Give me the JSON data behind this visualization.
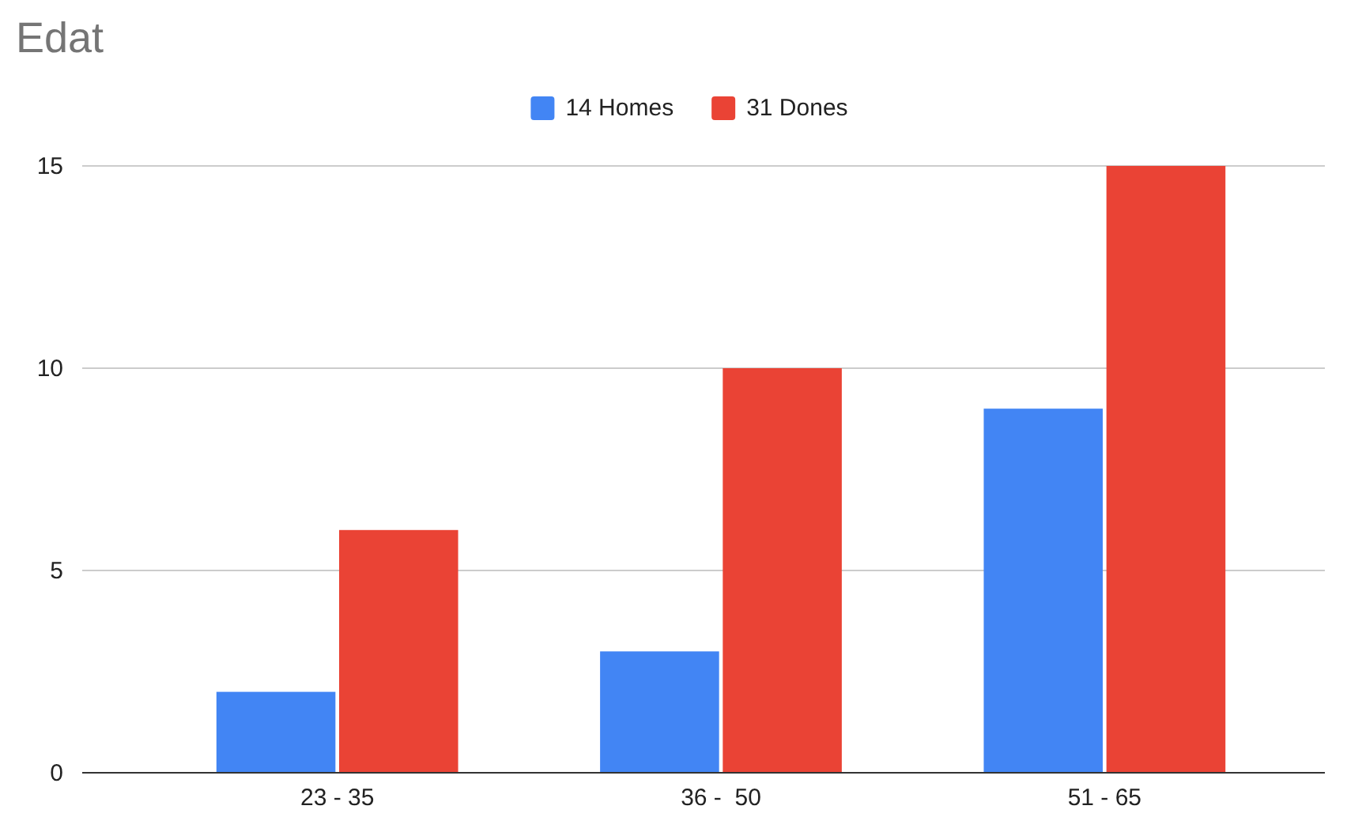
{
  "chart_data": {
    "type": "bar",
    "title": "Edat",
    "categories": [
      "23 - 35",
      "36 -  50",
      "51 - 65"
    ],
    "series": [
      {
        "name": "14 Homes",
        "color": "#4285f4",
        "values": [
          2,
          3,
          9
        ]
      },
      {
        "name": "31 Dones",
        "color": "#ea4335",
        "values": [
          6,
          10,
          15
        ]
      }
    ],
    "ylim": [
      0,
      15
    ],
    "yticks": [
      0,
      5,
      10,
      15
    ],
    "grid": "y",
    "legend": "top"
  }
}
